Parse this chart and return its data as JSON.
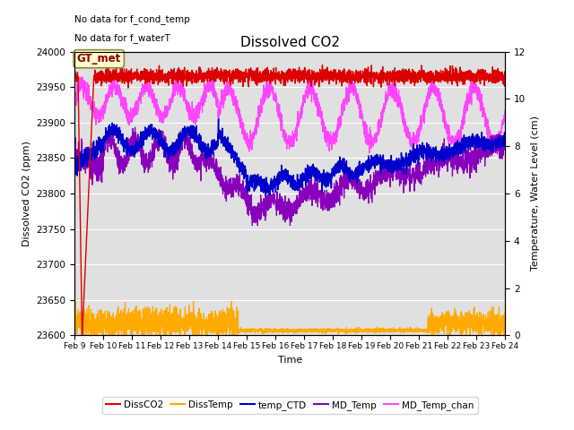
{
  "title": "Dissolved CO2",
  "ylabel_left": "Dissolved CO2 (ppm)",
  "ylabel_right": "Temperature, Water Level (cm)",
  "xlabel": "Time",
  "text_annotations": [
    "No data for f_cond_temp",
    "No data for f_waterT"
  ],
  "box_label": "GT_met",
  "ylim_left": [
    23600,
    24000
  ],
  "ylim_right": [
    0,
    12
  ],
  "yticks_left": [
    23600,
    23650,
    23700,
    23750,
    23800,
    23850,
    23900,
    23950,
    24000
  ],
  "yticks_right": [
    0,
    2,
    4,
    6,
    8,
    10,
    12
  ],
  "xtick_labels": [
    "Feb 9",
    "Feb 10",
    "Feb 11",
    "Feb 12",
    "Feb 13",
    "Feb 14",
    "Feb 15",
    "Feb 16",
    "Feb 17",
    "Feb 18",
    "Feb 19",
    "Feb 20",
    "Feb 21",
    "Feb 22",
    "Feb 23",
    "Feb 24"
  ],
  "colors": {
    "DissCO2": "#dd0000",
    "DissTemp": "#ffaa00",
    "temp_CTD": "#0000cc",
    "MD_Temp": "#8800bb",
    "MD_Temp_chan": "#ff44ff"
  },
  "bg_color": "#e0e0e0",
  "legend_labels": [
    "DissCO2",
    "DissTemp",
    "temp_CTD",
    "MD_Temp",
    "MD_Temp_chan"
  ]
}
